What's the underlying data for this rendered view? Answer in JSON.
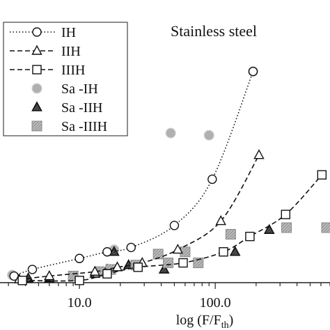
{
  "chart_data": {
    "type": "scatter",
    "title": "Stainless steel",
    "xlabel": "log (F/F",
    "xlabel_sub": "th",
    "xlabel_close": ")",
    "x_scale": "log",
    "xlim": [
      2.6,
      700
    ],
    "ylim": [
      0,
      1
    ],
    "y_ticks_labeled": false,
    "x_tick_labels": [
      {
        "value": 10,
        "label": "10.0"
      },
      {
        "value": 100,
        "label": "100.0"
      }
    ],
    "legend_position": "top-left",
    "series": [
      {
        "name": "IH",
        "kind": "line",
        "line": "dotted",
        "marker": "circle",
        "x": [
          3.3,
          4.5,
          10,
          16,
          24,
          50,
          95,
          190
        ],
        "y": [
          0.03,
          0.06,
          0.11,
          0.14,
          0.16,
          0.26,
          0.47,
          0.96
        ]
      },
      {
        "name": "IIH",
        "kind": "line",
        "line": "dashed",
        "marker": "triangle",
        "x": [
          3.6,
          6,
          13,
          19,
          29,
          53,
          110,
          210
        ],
        "y": [
          0.015,
          0.03,
          0.05,
          0.07,
          0.09,
          0.15,
          0.28,
          0.58
        ]
      },
      {
        "name": "IIIH",
        "kind": "line",
        "line": "dashed",
        "marker": "square",
        "x": [
          3.8,
          10,
          16,
          27,
          58,
          115,
          180,
          330,
          610
        ],
        "y": [
          0.01,
          0.01,
          0.04,
          0.07,
          0.09,
          0.14,
          0.21,
          0.31,
          0.49
        ]
      },
      {
        "name": "Sa -IH",
        "kind": "scatter",
        "marker": "circle-filled-gray",
        "x": [
          3.2,
          18,
          47,
          90,
          190
        ],
        "y": [
          0.035,
          0.15,
          0.68,
          0.67,
          0.96
        ]
      },
      {
        "name": "Sa -IIH",
        "kind": "scatter",
        "marker": "triangle-hatched",
        "x": [
          4.2,
          6,
          13,
          16,
          18,
          23,
          42,
          140,
          250
        ],
        "y": [
          0.02,
          0.02,
          0.04,
          0.06,
          0.14,
          0.08,
          0.06,
          0.14,
          0.24
        ]
      },
      {
        "name": "Sa -IIIH",
        "kind": "scatter",
        "marker": "square-hatched",
        "x": [
          9,
          14,
          17,
          26,
          38,
          45,
          60,
          75,
          130,
          335,
          660
        ],
        "y": [
          0.03,
          0.05,
          0.06,
          0.08,
          0.13,
          0.09,
          0.14,
          0.09,
          0.22,
          0.25,
          0.25
        ]
      }
    ]
  }
}
